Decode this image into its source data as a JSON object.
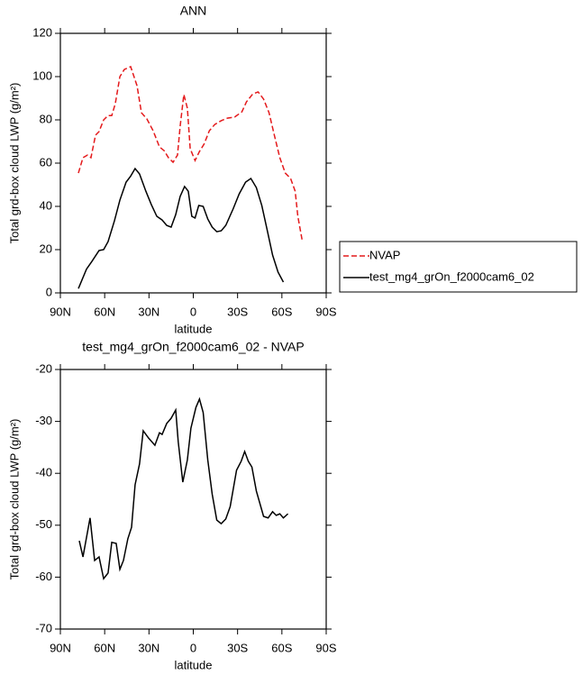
{
  "chart_data": [
    {
      "type": "line",
      "title": "ANN",
      "xlabel": "latitude",
      "ylabel": "Total grd-box cloud LWP (g/m²)",
      "xlim": [
        90,
        -90
      ],
      "ylim": [
        0,
        120
      ],
      "xticks": [
        {
          "value": 90,
          "label": "90N"
        },
        {
          "value": 60,
          "label": "60N"
        },
        {
          "value": 30,
          "label": "30N"
        },
        0,
        {
          "value": -30,
          "label": "30S"
        },
        {
          "value": -60,
          "label": "60S"
        },
        {
          "value": -90,
          "label": "90S"
        }
      ],
      "yticks": [
        0,
        20,
        40,
        60,
        80,
        100,
        120
      ],
      "legend": "right",
      "series": [
        {
          "name": "NVAP",
          "color": "#e41a1c",
          "dash": true,
          "x": [
            77.8,
            74.7,
            71.7,
            69.3,
            66.2,
            63.8,
            60.7,
            57.7,
            55.2,
            52.8,
            49.7,
            46.7,
            42.4,
            38.1,
            35.1,
            31.4,
            27.2,
            22.9,
            19.8,
            16.8,
            13.7,
            10.7,
            8.9,
            6.4,
            4,
            2.1,
            -1.2,
            -4.2,
            -7.3,
            -10.9,
            -14.6,
            -18.9,
            -23.1,
            -28,
            -32.9,
            -36,
            -40.3,
            -43.9,
            -47.6,
            -51.3,
            -54.9,
            -58.6,
            -62.3,
            -65.9,
            -69,
            -70.8,
            -73.9
          ],
          "values": [
            55.4,
            62.5,
            63.7,
            62.5,
            72.9,
            74.6,
            80,
            82,
            82,
            87.5,
            100,
            103.3,
            104.6,
            95.8,
            83.3,
            80.4,
            75,
            67.5,
            65.8,
            62.5,
            60.4,
            63.7,
            77,
            91.7,
            85.4,
            66.7,
            61.2,
            65.4,
            68.8,
            75,
            77.9,
            79.6,
            80.8,
            81.3,
            83.7,
            88.3,
            92,
            92.9,
            89.6,
            83.3,
            72.9,
            62.5,
            55.4,
            52.9,
            47,
            35.4,
            23.7
          ]
        },
        {
          "name": "test_mg4_grOn_f2000cam6_02",
          "color": "#000000",
          "dash": false,
          "x": [
            77.8,
            72.3,
            68.6,
            63.8,
            60.7,
            57.7,
            53.4,
            49.7,
            45.5,
            42.4,
            39.4,
            36.4,
            32.1,
            28.4,
            24.7,
            21.1,
            18,
            15,
            11.9,
            8.9,
            5.9,
            3.4,
            1,
            -1.2,
            -3.7,
            -6.7,
            -9.8,
            -12.8,
            -15.9,
            -18.9,
            -22,
            -26.9,
            -31.1,
            -35.4,
            -39,
            -42.7,
            -46.4,
            -50,
            -53.7,
            -57.4,
            -61
          ],
          "values": [
            2,
            11,
            14.6,
            19.6,
            20,
            23.7,
            33.3,
            42.9,
            51.2,
            54,
            57.5,
            55,
            47,
            40.8,
            35.4,
            33.7,
            31.2,
            30.4,
            36.2,
            44.6,
            49.2,
            47,
            35.4,
            34.6,
            40.4,
            40,
            34.2,
            30.4,
            28.3,
            28.7,
            31.2,
            38.7,
            45.8,
            51.2,
            52.9,
            48.7,
            40.4,
            29.2,
            17.5,
            9.6,
            5
          ]
        }
      ]
    },
    {
      "type": "line",
      "title": "test_mg4_grOn_f2000cam6_02 - NVAP",
      "xlabel": "latitude",
      "ylabel": "Total grd-box cloud LWP (g/m²)",
      "xlim": [
        90,
        -90
      ],
      "ylim": [
        -70,
        -20
      ],
      "xticks": [
        {
          "value": 90,
          "label": "90N"
        },
        {
          "value": 60,
          "label": "60N"
        },
        {
          "value": 30,
          "label": "30N"
        },
        0,
        {
          "value": -30,
          "label": "30S"
        },
        {
          "value": -60,
          "label": "60S"
        },
        {
          "value": -90,
          "label": "90S"
        }
      ],
      "yticks": [
        -70,
        -60,
        -50,
        -40,
        -30,
        -20
      ],
      "series": [
        {
          "color": "#000000",
          "dash": false,
          "x": [
            77.2,
            74.7,
            69.9,
            66.8,
            63.8,
            60.7,
            57.7,
            55.2,
            52.2,
            49.7,
            47.3,
            44.3,
            41.8,
            39.4,
            36.4,
            33.9,
            30.3,
            26,
            22.9,
            21.1,
            18,
            15,
            11.9,
            10.2,
            7.1,
            4,
            1.6,
            -1.8,
            -4.2,
            -6.7,
            -9.8,
            -12.8,
            -15.9,
            -18.9,
            -22,
            -25,
            -29.3,
            -32.4,
            -34.8,
            -37.3,
            -39.7,
            -42.7,
            -47.6,
            -50.7,
            -53.7,
            -56.2,
            -58.6,
            -61,
            -64.1
          ],
          "values": [
            -53,
            -56.1,
            -48.6,
            -56.8,
            -56.1,
            -60.3,
            -59.2,
            -53.3,
            -53.5,
            -58.5,
            -56.8,
            -52.6,
            -50.4,
            -42.2,
            -38.2,
            -31.8,
            -33.2,
            -34.6,
            -32.2,
            -32.5,
            -30.4,
            -29.4,
            -27.8,
            -33.9,
            -41.7,
            -37.4,
            -31.3,
            -27.3,
            -25.7,
            -28.3,
            -37.4,
            -44,
            -49,
            -49.7,
            -48.8,
            -46.4,
            -39.4,
            -37.7,
            -35.8,
            -37.7,
            -38.8,
            -43.4,
            -48.3,
            -48.6,
            -47.4,
            -48.1,
            -47.8,
            -48.6,
            -47.8
          ]
        }
      ]
    }
  ]
}
